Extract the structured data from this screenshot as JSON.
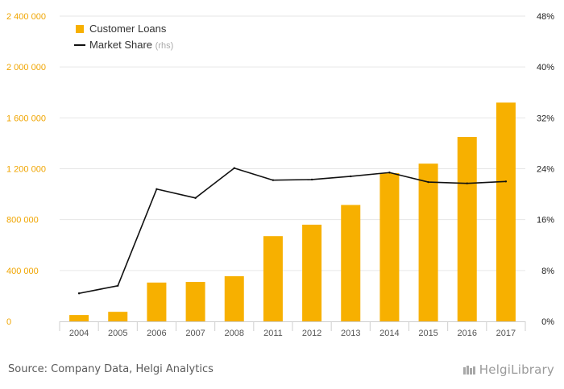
{
  "chart_data": {
    "type": "bar+line",
    "categories": [
      "2004",
      "2005",
      "2006",
      "2007",
      "2008",
      "2011",
      "2012",
      "2013",
      "2014",
      "2015",
      "2016",
      "2017"
    ],
    "series": [
      {
        "name": "Customer Loans",
        "axis": "left",
        "type": "bar",
        "color": "#f7b000",
        "values": [
          50000,
          75000,
          305000,
          310000,
          355000,
          670000,
          760000,
          915000,
          1165000,
          1240000,
          1450000,
          1720000
        ]
      },
      {
        "name": "Market Share",
        "axis": "right",
        "type": "line",
        "color": "#111111",
        "unit": "%",
        "values": [
          4.4,
          5.6,
          20.8,
          19.4,
          24.1,
          22.2,
          22.3,
          22.8,
          23.4,
          21.9,
          21.7,
          22.0
        ]
      }
    ],
    "left_axis": {
      "min": 0,
      "max": 2400000,
      "ticks": [
        "0",
        "400 000",
        "800 000",
        "1 200 000",
        "1 600 000",
        "2 000 000",
        "2 400 000"
      ],
      "tick_values": [
        0,
        400000,
        800000,
        1200000,
        1600000,
        2000000,
        2400000
      ],
      "color": "#f0a500"
    },
    "right_axis": {
      "min": 0,
      "max": 48,
      "ticks": [
        "0%",
        "8%",
        "16%",
        "24%",
        "32%",
        "40%",
        "48%"
      ],
      "tick_values": [
        0,
        8,
        16,
        24,
        32,
        40,
        48
      ]
    },
    "legend": {
      "placement": "top-left",
      "items": [
        {
          "label": "Customer Loans",
          "suffix": ""
        },
        {
          "label": "Market Share",
          "suffix": "(rhs)"
        }
      ]
    },
    "grid": true
  },
  "footer": {
    "source": "Source: Company Data, Helgi Analytics",
    "brand": "HelgiLibrary"
  }
}
